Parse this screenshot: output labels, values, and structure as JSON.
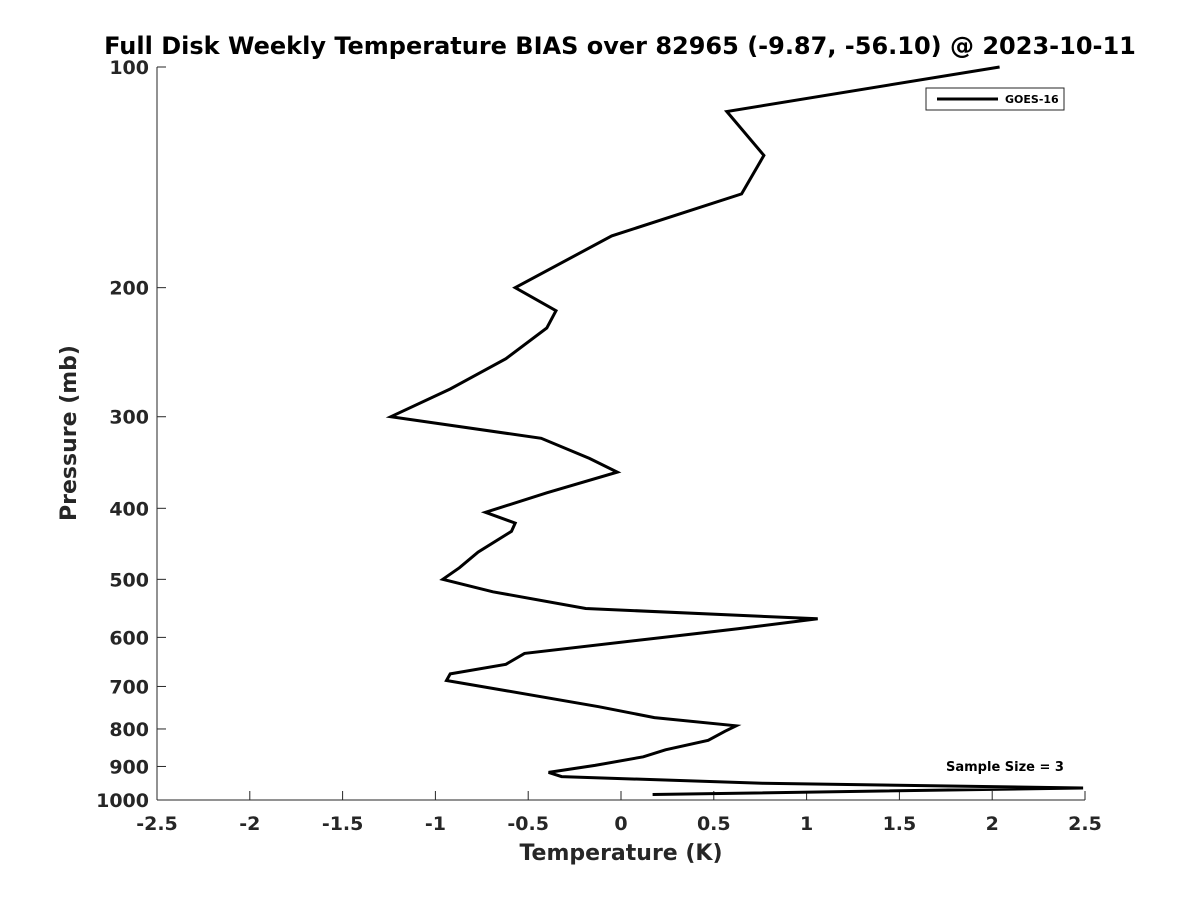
{
  "chart_data": {
    "type": "line",
    "title": "Full Disk Weekly Temperature BIAS over 82965 (-9.87, -56.10) @ 2023-10-11",
    "xlabel": "Temperature (K)",
    "ylabel": "Pressure (mb)",
    "xlim": [
      -2.5,
      2.5
    ],
    "ylim": [
      100,
      1000
    ],
    "y_scale": "log",
    "y_reversed": true,
    "x_ticks": [
      -2.5,
      -2,
      -1.5,
      -1,
      -0.5,
      0,
      0.5,
      1,
      1.5,
      2,
      2.5
    ],
    "x_tick_labels": [
      "-2.5",
      "-2",
      "-1.5",
      "-1",
      "-0.5",
      "0",
      "0.5",
      "1",
      "1.5",
      "2",
      "2.5"
    ],
    "y_ticks": [
      100,
      200,
      300,
      400,
      500,
      600,
      700,
      800,
      900,
      1000
    ],
    "y_tick_labels": [
      "100",
      "200",
      "300",
      "400",
      "500",
      "600",
      "700",
      "800",
      "900",
      "1000"
    ],
    "grid": false,
    "legend_position": "top-right",
    "annotation": "Sample Size = 3",
    "series": [
      {
        "name": "GOES-16",
        "color": "#000000",
        "x": [
          2.04,
          0.57,
          0.77,
          0.65,
          -0.05,
          -0.57,
          -0.35,
          -0.4,
          -0.62,
          -0.92,
          -1.24,
          -0.43,
          -0.17,
          -0.02,
          -0.4,
          -0.73,
          -0.57,
          -0.59,
          -0.77,
          -0.87,
          -0.96,
          -0.69,
          -0.19,
          1.06,
          0.63,
          -0.52,
          -0.62,
          -0.92,
          -0.94,
          -0.61,
          -0.12,
          0.18,
          0.62,
          0.56,
          0.47,
          0.24,
          0.12,
          -0.14,
          -0.39,
          -0.32,
          0.76,
          2.49,
          0.17
        ],
        "y": [
          100,
          115,
          132,
          149,
          170,
          200,
          215,
          227,
          250,
          275,
          300,
          321,
          342,
          357,
          381,
          405,
          419,
          430,
          459,
          482,
          500,
          520,
          548,
          566,
          584,
          631,
          653,
          673,
          687,
          710,
          746,
          772,
          792,
          806,
          829,
          854,
          873,
          897,
          917,
          929,
          949,
          963,
          983
        ]
      }
    ]
  }
}
